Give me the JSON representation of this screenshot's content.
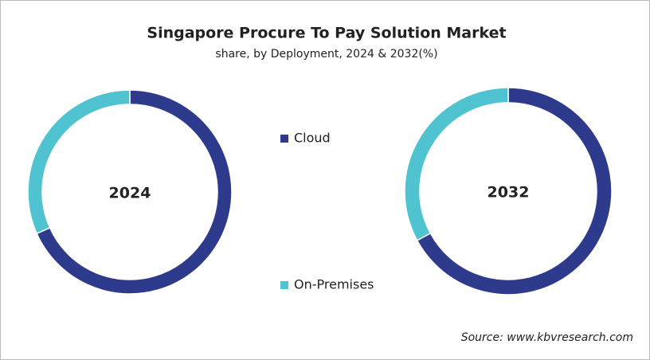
{
  "title": "Singapore Procure To Pay Solution Market",
  "subtitle": "share, by Deployment, 2024 & 2032(%)",
  "source": "Source: www.kbvresearch.com",
  "chart_data": [
    {
      "type": "pie",
      "title": "2024",
      "categories": [
        "Cloud",
        "On-Premises"
      ],
      "values": [
        68.3,
        31.7
      ],
      "colors": [
        "#2e3a8c",
        "#4fc3d0"
      ]
    },
    {
      "type": "pie",
      "title": "2032",
      "categories": [
        "Cloud",
        "On-Premises"
      ],
      "values": [
        67.1,
        32.9
      ],
      "colors": [
        "#2e3a8c",
        "#4fc3d0"
      ]
    }
  ]
}
